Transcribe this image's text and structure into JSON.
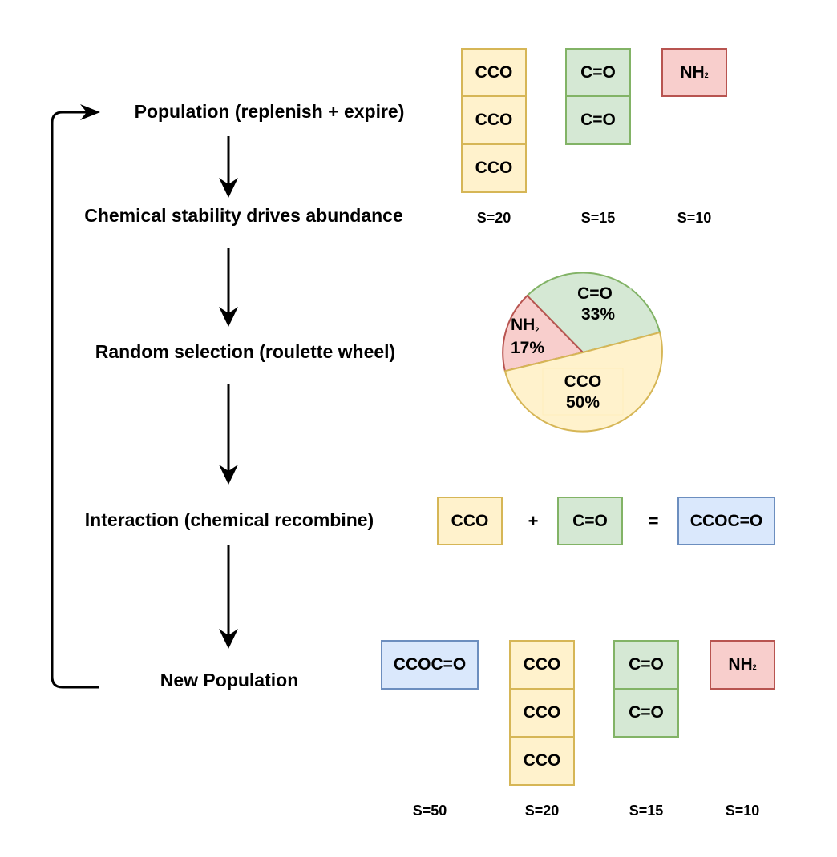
{
  "steps": {
    "population": "Population (replenish + expire)",
    "stability": "Chemical stability drives abundance",
    "selection": "Random selection (roulette wheel)",
    "interaction": "Interaction (chemical recombine)",
    "new_population": "New Population"
  },
  "initial_population": {
    "cco": "CCO",
    "co": "C=O",
    "nh2_main": "NH",
    "nh2_sub": "2",
    "scores": [
      "S=20",
      "S=15",
      "S=10"
    ]
  },
  "roulette": {
    "slices": [
      {
        "label": "C=O",
        "percent": "33%",
        "fraction": 0.333,
        "color": "#d5e8d4",
        "stroke": "#82b366"
      },
      {
        "label_main": "NH",
        "label_sub": "2",
        "percent": "17%",
        "fraction": 0.167,
        "color": "#f8cecc",
        "stroke": "#b85450"
      },
      {
        "label": "CCO",
        "percent": "50%",
        "fraction": 0.5,
        "color": "#fff2cc",
        "stroke": "#d6b656"
      }
    ]
  },
  "interaction": {
    "left": "CCO",
    "plus": "+",
    "right": "C=O",
    "equals": "=",
    "result": "CCOC=O"
  },
  "new_population": {
    "ccoc": "CCOC=O",
    "cco": "CCO",
    "co": "C=O",
    "nh2_main": "NH",
    "nh2_sub": "2",
    "scores": [
      "S=50",
      "S=20",
      "S=15",
      "S=10"
    ]
  }
}
